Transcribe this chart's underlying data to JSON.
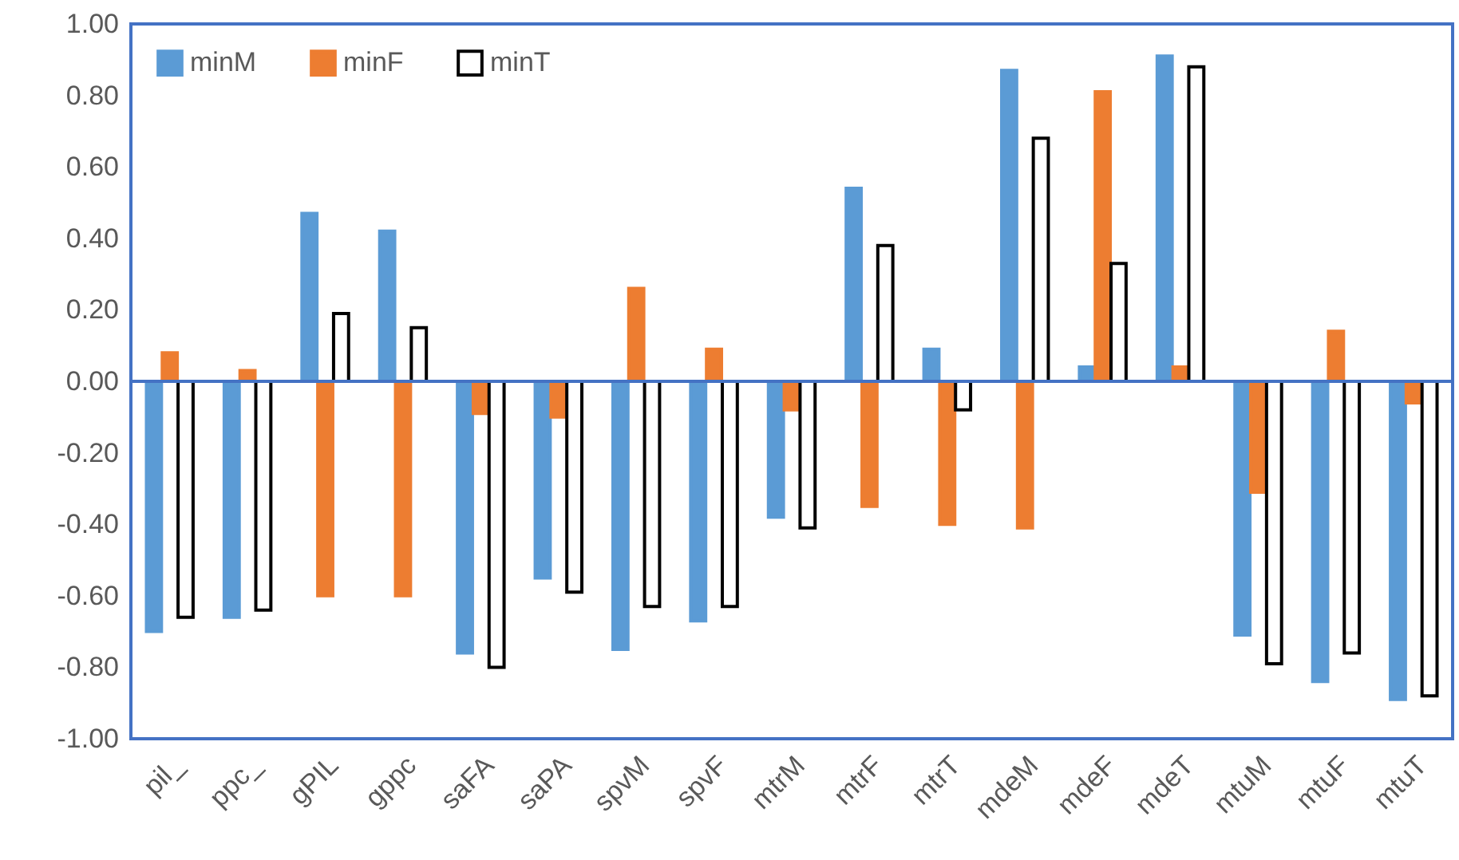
{
  "chart_data": {
    "type": "bar",
    "categories": [
      "pil_",
      "ppc_",
      "gPIL",
      "gppc",
      "saFA",
      "saPA",
      "spvM",
      "spvF",
      "mtrM",
      "mtrF",
      "mtrT",
      "mdeM",
      "mdeF",
      "mdeT",
      "mtuM",
      "mtuF",
      "mtuT"
    ],
    "series": [
      {
        "name": "minM",
        "color": "#5b9bd5",
        "values": [
          -0.7,
          -0.66,
          0.47,
          0.42,
          -0.76,
          -0.55,
          -0.75,
          -0.67,
          -0.38,
          0.54,
          0.09,
          0.87,
          0.04,
          0.91,
          -0.71,
          -0.84,
          -0.89
        ]
      },
      {
        "name": "minF",
        "color": "#ed7d31",
        "values": [
          0.08,
          0.03,
          -0.6,
          -0.6,
          -0.09,
          -0.1,
          0.26,
          0.09,
          -0.08,
          -0.35,
          -0.4,
          -0.41,
          0.81,
          0.04,
          -0.31,
          0.14,
          -0.06
        ]
      },
      {
        "name": "minT",
        "color": "#000000",
        "values": [
          -0.66,
          -0.64,
          0.19,
          0.15,
          -0.8,
          -0.59,
          -0.63,
          -0.63,
          -0.41,
          0.38,
          -0.08,
          0.68,
          0.33,
          0.88,
          -0.79,
          -0.76,
          -0.88
        ]
      }
    ],
    "ylim": [
      -1,
      1
    ],
    "yticks": [
      {
        "value": -1,
        "label": "-1.00"
      },
      {
        "value": -0.8,
        "label": "-0.80"
      },
      {
        "value": -0.6,
        "label": "-0.60"
      },
      {
        "value": -0.4,
        "label": "-0.40"
      },
      {
        "value": -0.2,
        "label": "-0.20"
      },
      {
        "value": 0,
        "label": "0.00"
      },
      {
        "value": 0.2,
        "label": "0.20"
      },
      {
        "value": 0.4,
        "label": "0.40"
      },
      {
        "value": 0.6,
        "label": "0.60"
      },
      {
        "value": 0.8,
        "label": "0.80"
      },
      {
        "value": 1,
        "label": "1.00"
      }
    ],
    "ref_lines": [
      {
        "axis": "y",
        "value": 0,
        "color": "#4472c4"
      }
    ],
    "grid": false,
    "legend": "top left"
  }
}
